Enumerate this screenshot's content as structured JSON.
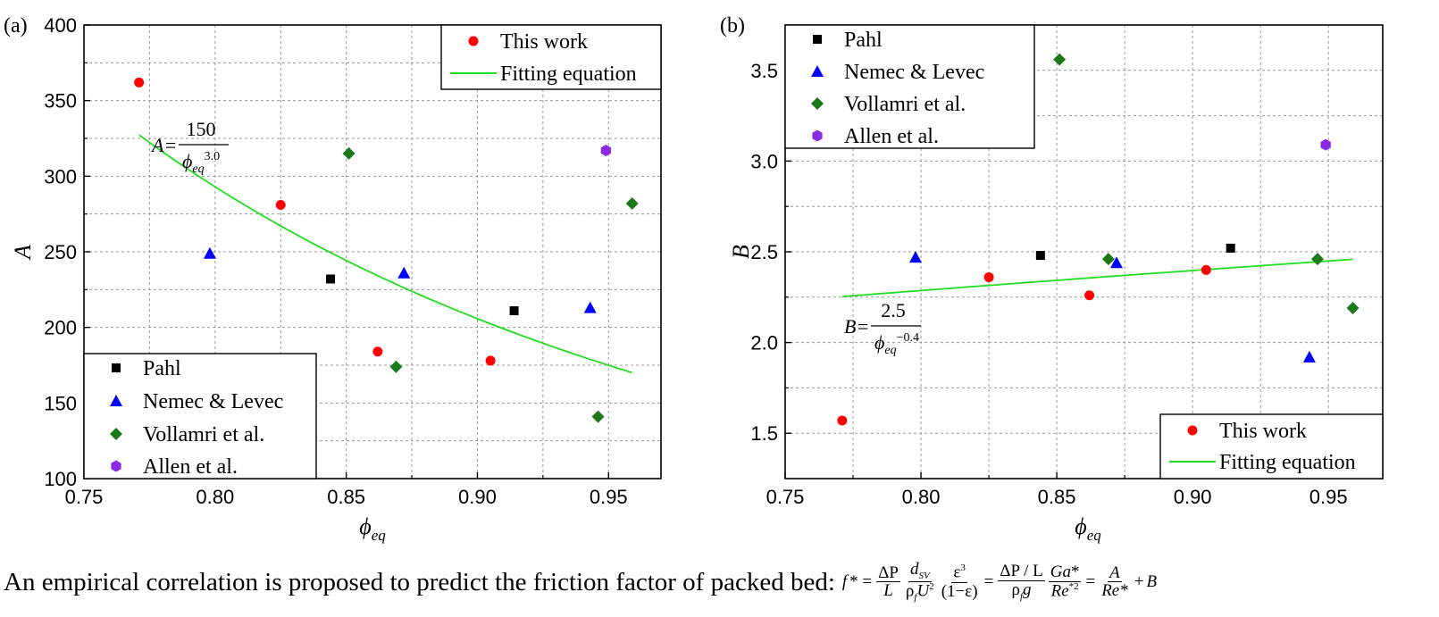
{
  "chart_data": [
    {
      "panel_label": "(a)",
      "type": "scatter",
      "ylabel": "A",
      "xlabel_main": "ϕ",
      "xlabel_sub": "eq",
      "xlim": [
        0.75,
        0.97
      ],
      "ylim": [
        100,
        400
      ],
      "xticks": [
        "0.75",
        "0.80",
        "0.85",
        "0.90",
        "0.95"
      ],
      "yticks": [
        "100",
        "150",
        "200",
        "250",
        "300",
        "350",
        "400"
      ],
      "grid": true,
      "series": [
        {
          "name": "Pahl",
          "marker": "square",
          "color": "#000000",
          "points": [
            [
              0.844,
              232
            ],
            [
              0.914,
              211
            ]
          ]
        },
        {
          "name": "Nemec & Levec",
          "marker": "triangle",
          "color": "#0000ff",
          "points": [
            [
              0.798,
              249
            ],
            [
              0.872,
              236
            ],
            [
              0.943,
              213
            ]
          ]
        },
        {
          "name": "Vollamri et al.",
          "marker": "diamond",
          "color": "#1a7a1a",
          "points": [
            [
              0.851,
              315
            ],
            [
              0.869,
              174
            ],
            [
              0.946,
              141
            ],
            [
              0.959,
              282
            ]
          ]
        },
        {
          "name": "Allen et al.",
          "marker": "hexagon",
          "color": "#8a2be2",
          "points": [
            [
              0.949,
              317
            ]
          ]
        },
        {
          "name": "This work",
          "marker": "circle",
          "color": "#ff0000",
          "points": [
            [
              0.771,
              362
            ],
            [
              0.825,
              281
            ],
            [
              0.862,
              184
            ],
            [
              0.905,
              178
            ]
          ]
        }
      ],
      "fit": {
        "name": "Fitting equation",
        "color": "#22dd22",
        "coef": 150,
        "exp": 3.0,
        "x_range": [
          0.771,
          0.959
        ]
      },
      "equation": {
        "lhs": "A=",
        "numerator": "150",
        "phi": "ϕ",
        "sub": "eq",
        "sup": "3.0"
      },
      "legends": [
        {
          "position": "top-right",
          "entries": [
            "This work",
            "Fitting equation"
          ]
        },
        {
          "position": "bottom-left",
          "entries": [
            "Pahl",
            "Nemec & Levec",
            "Vollamri et al.",
            "Allen et al."
          ]
        }
      ]
    },
    {
      "panel_label": "(b)",
      "type": "scatter",
      "ylabel": "B",
      "xlabel_main": "ϕ",
      "xlabel_sub": "eq",
      "xlim": [
        0.75,
        0.97
      ],
      "ylim": [
        1.25,
        3.75
      ],
      "xticks": [
        "0.75",
        "0.80",
        "0.85",
        "0.90",
        "0.95"
      ],
      "yticks": [
        "1.5",
        "2.0",
        "2.5",
        "3.0",
        "3.5"
      ],
      "grid": true,
      "series": [
        {
          "name": "Pahl",
          "marker": "square",
          "color": "#000000",
          "points": [
            [
              0.844,
              2.48
            ],
            [
              0.914,
              2.52
            ]
          ]
        },
        {
          "name": "Nemec & Levec",
          "marker": "triangle",
          "color": "#0000ff",
          "points": [
            [
              0.798,
              2.47
            ],
            [
              0.872,
              2.44
            ],
            [
              0.943,
              1.92
            ]
          ]
        },
        {
          "name": "Vollamri et al.",
          "marker": "diamond",
          "color": "#1a7a1a",
          "points": [
            [
              0.851,
              3.56
            ],
            [
              0.869,
              2.46
            ],
            [
              0.946,
              2.46
            ],
            [
              0.959,
              2.19
            ]
          ]
        },
        {
          "name": "Allen et al.",
          "marker": "hexagon",
          "color": "#8a2be2",
          "points": [
            [
              0.949,
              3.09
            ]
          ]
        },
        {
          "name": "This work",
          "marker": "circle",
          "color": "#ff0000",
          "points": [
            [
              0.771,
              1.57
            ],
            [
              0.825,
              2.36
            ],
            [
              0.862,
              2.26
            ],
            [
              0.905,
              2.4
            ]
          ]
        }
      ],
      "fit": {
        "name": "Fitting equation",
        "color": "#22dd22",
        "coef": 2.5,
        "exp": -0.4,
        "x_range": [
          0.771,
          0.959
        ]
      },
      "equation": {
        "lhs": "B=",
        "numerator": "2.5",
        "phi": "ϕ",
        "sub": "eq",
        "sup": "−0.4"
      },
      "legends": [
        {
          "position": "top-left",
          "entries": [
            "Pahl",
            "Nemec & Levec",
            "Vollamri et al.",
            "Allen et al."
          ]
        },
        {
          "position": "bottom-right",
          "entries": [
            "This work",
            "Fitting equation"
          ]
        }
      ]
    }
  ],
  "caption": {
    "text": "An empirical correlation is proposed to predict the friction factor of packed bed:",
    "formula": {
      "f": "f",
      "star_eq": "* =",
      "dp": "ΔP",
      "L": "L",
      "dsv_d": "d",
      "dsv_sub": "SV",
      "rho": "ρ",
      "rho_sub": "f",
      "U": "U",
      "sq": "2",
      "eps3": "ε",
      "cube": "3",
      "one_minus_eps": "(1−ε)",
      "eq1": "=",
      "dp_over_l": "ΔP / L",
      "g": "g",
      "ga": "Ga",
      "star": "*",
      "re": "Re",
      "re_sq": "*2",
      "eq2": "=",
      "A": "A",
      "re_star": "Re*",
      "plus": "+",
      "B": "B"
    }
  }
}
